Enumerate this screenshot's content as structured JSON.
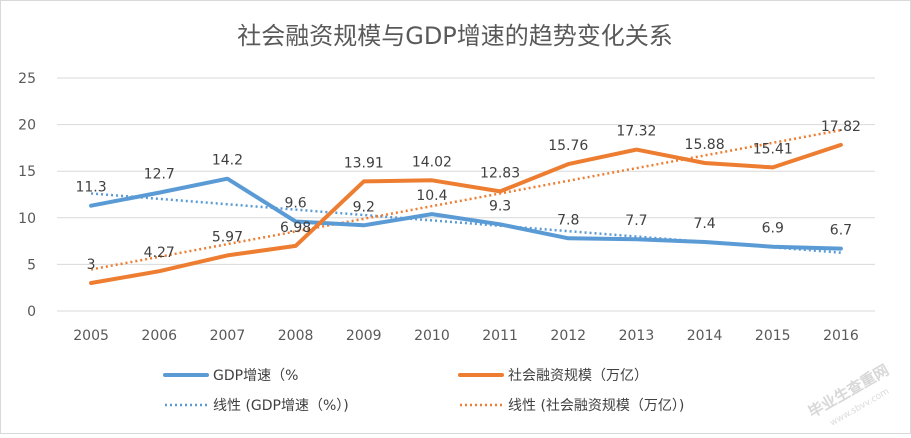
{
  "chart_data": {
    "type": "line",
    "title": "社会融资规模与GDP增速的趋势变化关系",
    "xlabel": "",
    "ylabel": "",
    "categories": [
      "2005",
      "2006",
      "2007",
      "2008",
      "2009",
      "2010",
      "2011",
      "2012",
      "2013",
      "2014",
      "2015",
      "2016"
    ],
    "ylim": [
      0,
      25
    ],
    "yticks": [
      "0",
      "5",
      "10",
      "15",
      "20",
      "25"
    ],
    "grid": true,
    "legend_position": "bottom",
    "series": [
      {
        "name": "GDP增速（%",
        "values": [
          11.3,
          12.7,
          14.2,
          9.6,
          9.2,
          10.4,
          9.3,
          7.8,
          7.7,
          7.4,
          6.9,
          6.7
        ],
        "labels": [
          "11.3",
          "12.7",
          "14.2",
          "9.6",
          "9.2",
          "10.4",
          "9.3",
          "7.8",
          "7.7",
          "7.4",
          "6.9",
          "6.7"
        ],
        "color": "#5b9bd5"
      },
      {
        "name": "社会融资规模（万亿）",
        "values": [
          3,
          4.27,
          5.97,
          6.98,
          13.91,
          14.02,
          12.83,
          15.76,
          17.32,
          15.88,
          15.41,
          17.82
        ],
        "labels": [
          "3",
          "4.27",
          "5.97",
          "6.98",
          "13.91",
          "14.02",
          "12.83",
          "15.76",
          "17.32",
          "15.88",
          "15.41",
          "17.82"
        ],
        "color": "#ed7d31"
      }
    ],
    "trendlines": [
      {
        "name": "线性 (GDP增速（%）)",
        "of_series": 0,
        "color": "#5b9bd5",
        "style": "dotted"
      },
      {
        "name": "线性 (社会融资规模（万亿）)",
        "of_series": 1,
        "color": "#ed7d31",
        "style": "dotted"
      }
    ]
  },
  "watermark": {
    "text": "毕业生查重网",
    "subtext": "www.sbvv.com"
  }
}
